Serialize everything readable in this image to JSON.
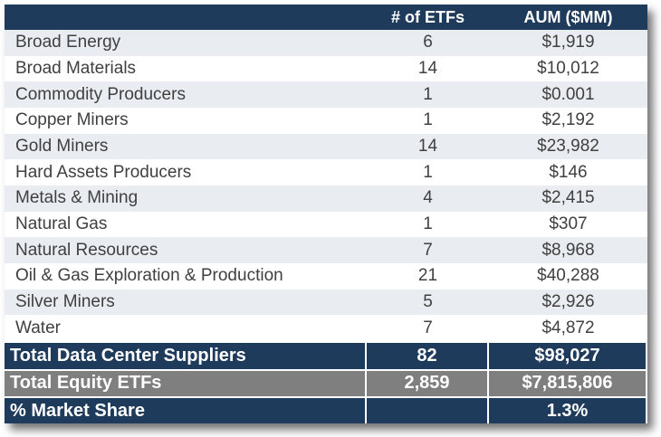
{
  "table": {
    "header": [
      "# of ETFs",
      "AUM ($MM)"
    ],
    "rows": [
      [
        "Broad Energy",
        "6",
        "$1,919"
      ],
      [
        "Broad Materials",
        "14",
        "$10,012"
      ],
      [
        "Commodity Producers",
        "1",
        "$0.001"
      ],
      [
        "Copper Miners",
        "1",
        "$2,192"
      ],
      [
        "Gold Miners",
        "14",
        "$23,982"
      ],
      [
        "Hard Assets Producers",
        "1",
        "$146"
      ],
      [
        "Metals & Mining",
        "4",
        "$2,415"
      ],
      [
        "Natural Gas",
        "1",
        "$307"
      ],
      [
        "Natural Resources",
        "7",
        "$8,968"
      ],
      [
        "Oil & Gas Exploration & Production",
        "21",
        "$40,288"
      ],
      [
        "Silver Miners",
        "5",
        "$2,926"
      ],
      [
        "Water",
        "7",
        "$4,872"
      ]
    ],
    "totals": [
      [
        "Total Data Center Suppliers",
        "82",
        "$98,027"
      ],
      [
        "Total Equity ETFs",
        "2,859",
        "$7,815,806"
      ]
    ],
    "market_share": [
      "% Market Share",
      "1.3%"
    ]
  }
}
